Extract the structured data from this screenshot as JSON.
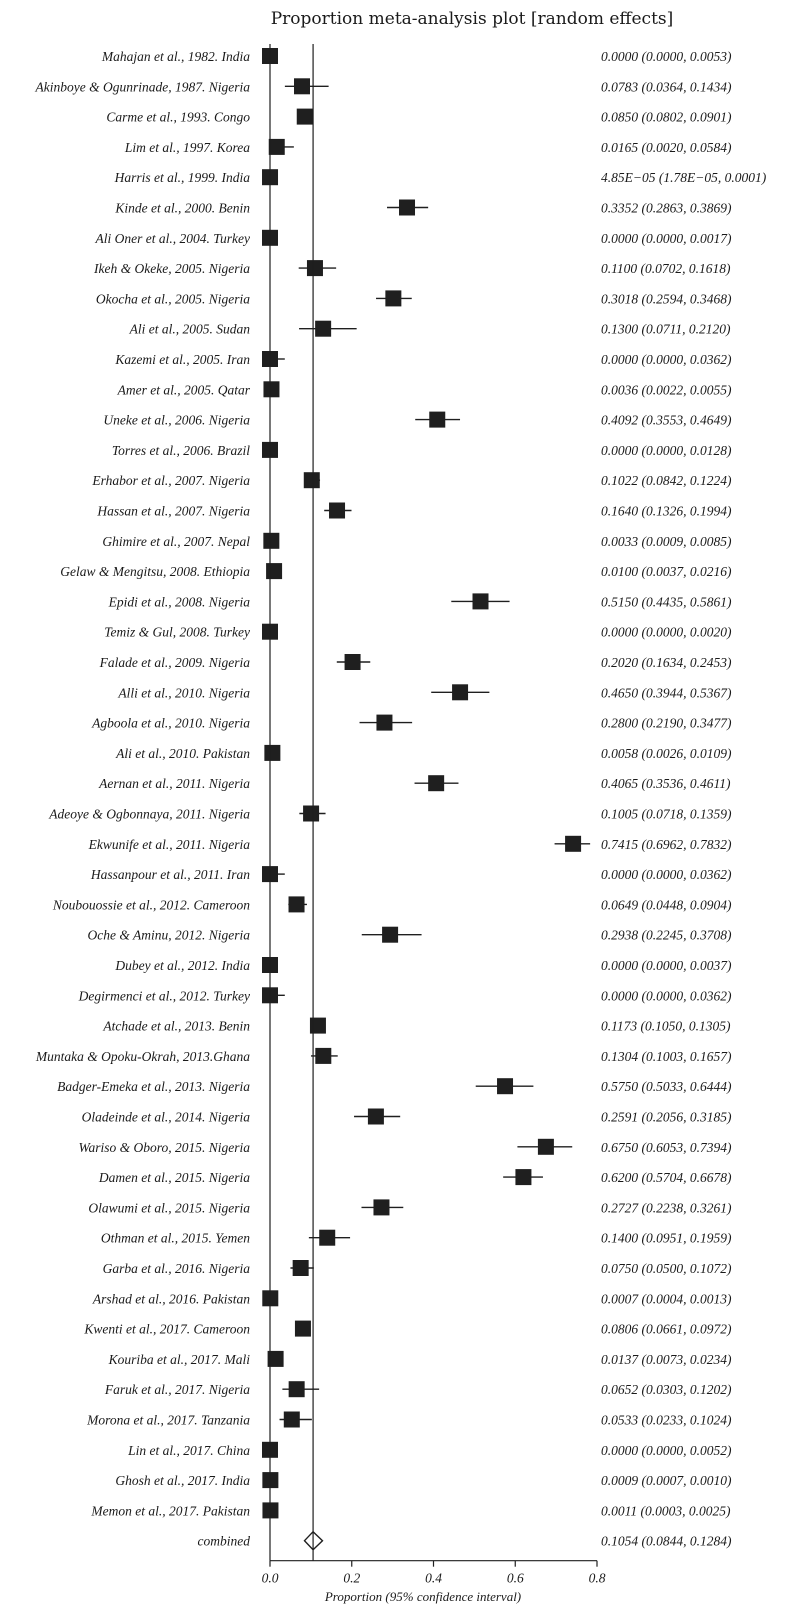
{
  "chart_data": {
    "type": "forest",
    "title": "Proportion meta-analysis plot [random effects]",
    "xlabel": "Proportion (95% confidence interval)",
    "xlim": [
      0,
      0.8
    ],
    "xticks": [
      "0.0",
      "0.2",
      "0.4",
      "0.6",
      "0.8"
    ],
    "reference_line": 0.1054,
    "studies": [
      {
        "label": "Mahajan et al., 1982. India",
        "p": 0.0,
        "lo": 0.0,
        "hi": 0.0053,
        "ci": "0.0000 (0.0000, 0.0053)"
      },
      {
        "label": "Akinboye & Ogunrinade, 1987. Nigeria",
        "p": 0.0783,
        "lo": 0.0364,
        "hi": 0.1434,
        "ci": "0.0783 (0.0364, 0.1434)"
      },
      {
        "label": "Carme et al., 1993. Congo",
        "p": 0.085,
        "lo": 0.0802,
        "hi": 0.0901,
        "ci": "0.0850 (0.0802, 0.0901)"
      },
      {
        "label": "Lim et al., 1997. Korea",
        "p": 0.0165,
        "lo": 0.002,
        "hi": 0.0584,
        "ci": "0.0165 (0.0020, 0.0584)"
      },
      {
        "label": "Harris et al., 1999. India",
        "p": 4.85e-05,
        "lo": 1.78e-05,
        "hi": 0.0001,
        "ci": "4.85E−05 (1.78E−05, 0.0001)"
      },
      {
        "label": "Kinde et al., 2000. Benin",
        "p": 0.3352,
        "lo": 0.2863,
        "hi": 0.3869,
        "ci": "0.3352 (0.2863, 0.3869)"
      },
      {
        "label": "Ali Oner et al., 2004. Turkey",
        "p": 0.0,
        "lo": 0.0,
        "hi": 0.0017,
        "ci": "0.0000 (0.0000, 0.0017)"
      },
      {
        "label": "Ikeh & Okeke, 2005. Nigeria",
        "p": 0.11,
        "lo": 0.0702,
        "hi": 0.1618,
        "ci": "0.1100 (0.0702, 0.1618)"
      },
      {
        "label": "Okocha et al., 2005. Nigeria",
        "p": 0.3018,
        "lo": 0.2594,
        "hi": 0.3468,
        "ci": "0.3018 (0.2594, 0.3468)"
      },
      {
        "label": "Ali et al., 2005. Sudan",
        "p": 0.13,
        "lo": 0.0711,
        "hi": 0.212,
        "ci": "0.1300 (0.0711, 0.2120)"
      },
      {
        "label": "Kazemi et al., 2005. Iran",
        "p": 0.0,
        "lo": 0.0,
        "hi": 0.0362,
        "ci": "0.0000 (0.0000, 0.0362)"
      },
      {
        "label": "Amer et al., 2005. Qatar",
        "p": 0.0036,
        "lo": 0.0022,
        "hi": 0.0055,
        "ci": "0.0036 (0.0022, 0.0055)"
      },
      {
        "label": "Uneke et al., 2006. Nigeria",
        "p": 0.4092,
        "lo": 0.3553,
        "hi": 0.4649,
        "ci": "0.4092 (0.3553, 0.4649)"
      },
      {
        "label": "Torres et al., 2006. Brazil",
        "p": 0.0,
        "lo": 0.0,
        "hi": 0.0128,
        "ci": "0.0000 (0.0000, 0.0128)"
      },
      {
        "label": "Erhabor et al., 2007. Nigeria",
        "p": 0.1022,
        "lo": 0.0842,
        "hi": 0.1224,
        "ci": "0.1022 (0.0842, 0.1224)"
      },
      {
        "label": "Hassan et al., 2007. Nigeria",
        "p": 0.164,
        "lo": 0.1326,
        "hi": 0.1994,
        "ci": "0.1640 (0.1326, 0.1994)"
      },
      {
        "label": "Ghimire et al., 2007. Nepal",
        "p": 0.0033,
        "lo": 0.0009,
        "hi": 0.0085,
        "ci": "0.0033 (0.0009, 0.0085)"
      },
      {
        "label": "Gelaw & Mengitsu, 2008. Ethiopia",
        "p": 0.01,
        "lo": 0.0037,
        "hi": 0.0216,
        "ci": "0.0100 (0.0037, 0.0216)"
      },
      {
        "label": "Epidi et al., 2008. Nigeria",
        "p": 0.515,
        "lo": 0.4435,
        "hi": 0.5861,
        "ci": "0.5150 (0.4435, 0.5861)"
      },
      {
        "label": "Temiz & Gul, 2008. Turkey",
        "p": 0.0,
        "lo": 0.0,
        "hi": 0.002,
        "ci": "0.0000 (0.0000, 0.0020)"
      },
      {
        "label": "Falade et al., 2009. Nigeria",
        "p": 0.202,
        "lo": 0.1634,
        "hi": 0.2453,
        "ci": "0.2020 (0.1634, 0.2453)"
      },
      {
        "label": "Alli et al., 2010. Nigeria",
        "p": 0.465,
        "lo": 0.3944,
        "hi": 0.5367,
        "ci": "0.4650 (0.3944, 0.5367)"
      },
      {
        "label": "Agboola et al., 2010. Nigeria",
        "p": 0.28,
        "lo": 0.219,
        "hi": 0.3477,
        "ci": "0.2800 (0.2190, 0.3477)"
      },
      {
        "label": "Ali et al., 2010. Pakistan",
        "p": 0.0058,
        "lo": 0.0026,
        "hi": 0.0109,
        "ci": "0.0058 (0.0026, 0.0109)"
      },
      {
        "label": "Aernan et al., 2011. Nigeria",
        "p": 0.4065,
        "lo": 0.3536,
        "hi": 0.4611,
        "ci": "0.4065 (0.3536, 0.4611)"
      },
      {
        "label": "Adeoye & Ogbonnaya, 2011. Nigeria",
        "p": 0.1005,
        "lo": 0.0718,
        "hi": 0.1359,
        "ci": "0.1005 (0.0718, 0.1359)"
      },
      {
        "label": "Ekwunife et al., 2011. Nigeria",
        "p": 0.7415,
        "lo": 0.6962,
        "hi": 0.7832,
        "ci": "0.7415 (0.6962, 0.7832)"
      },
      {
        "label": "Hassanpour et al., 2011. Iran",
        "p": 0.0,
        "lo": 0.0,
        "hi": 0.0362,
        "ci": "0.0000 (0.0000, 0.0362)"
      },
      {
        "label": "Noubouossie et al., 2012. Cameroon",
        "p": 0.0649,
        "lo": 0.0448,
        "hi": 0.0904,
        "ci": "0.0649 (0.0448, 0.0904)"
      },
      {
        "label": "Oche & Aminu, 2012. Nigeria",
        "p": 0.2938,
        "lo": 0.2245,
        "hi": 0.3708,
        "ci": "0.2938 (0.2245, 0.3708)"
      },
      {
        "label": "Dubey et al., 2012. India",
        "p": 0.0,
        "lo": 0.0,
        "hi": 0.0037,
        "ci": "0.0000 (0.0000, 0.0037)"
      },
      {
        "label": "Degirmenci et al., 2012. Turkey",
        "p": 0.0,
        "lo": 0.0,
        "hi": 0.0362,
        "ci": "0.0000 (0.0000, 0.0362)"
      },
      {
        "label": "Atchade et al., 2013. Benin",
        "p": 0.1173,
        "lo": 0.105,
        "hi": 0.1305,
        "ci": "0.1173 (0.1050, 0.1305)"
      },
      {
        "label": "Muntaka & Opoku-Okrah, 2013.Ghana",
        "p": 0.1304,
        "lo": 0.1003,
        "hi": 0.1657,
        "ci": "0.1304 (0.1003, 0.1657)"
      },
      {
        "label": "Badger-Emeka et al., 2013. Nigeria",
        "p": 0.575,
        "lo": 0.5033,
        "hi": 0.6444,
        "ci": "0.5750 (0.5033, 0.6444)"
      },
      {
        "label": "Oladeinde et al., 2014. Nigeria",
        "p": 0.2591,
        "lo": 0.2056,
        "hi": 0.3185,
        "ci": "0.2591 (0.2056, 0.3185)"
      },
      {
        "label": "Wariso & Oboro, 2015. Nigeria",
        "p": 0.675,
        "lo": 0.6053,
        "hi": 0.7394,
        "ci": "0.6750 (0.6053, 0.7394)"
      },
      {
        "label": "Damen et al., 2015. Nigeria",
        "p": 0.62,
        "lo": 0.5704,
        "hi": 0.6678,
        "ci": "0.6200 (0.5704, 0.6678)"
      },
      {
        "label": "Olawumi et al., 2015. Nigeria",
        "p": 0.2727,
        "lo": 0.2238,
        "hi": 0.3261,
        "ci": "0.2727 (0.2238, 0.3261)"
      },
      {
        "label": "Othman et al., 2015. Yemen",
        "p": 0.14,
        "lo": 0.0951,
        "hi": 0.1959,
        "ci": "0.1400 (0.0951, 0.1959)"
      },
      {
        "label": "Garba et al., 2016. Nigeria",
        "p": 0.075,
        "lo": 0.05,
        "hi": 0.1072,
        "ci": "0.0750 (0.0500, 0.1072)"
      },
      {
        "label": "Arshad et al., 2016. Pakistan",
        "p": 0.0007,
        "lo": 0.0004,
        "hi": 0.0013,
        "ci": "0.0007 (0.0004, 0.0013)"
      },
      {
        "label": "Kwenti et al., 2017. Cameroon",
        "p": 0.0806,
        "lo": 0.0661,
        "hi": 0.0972,
        "ci": "0.0806 (0.0661, 0.0972)"
      },
      {
        "label": "Kouriba et al., 2017. Mali",
        "p": 0.0137,
        "lo": 0.0073,
        "hi": 0.0234,
        "ci": "0.0137 (0.0073, 0.0234)"
      },
      {
        "label": "Faruk et al., 2017. Nigeria",
        "p": 0.0652,
        "lo": 0.0303,
        "hi": 0.1202,
        "ci": "0.0652 (0.0303, 0.1202)"
      },
      {
        "label": "Morona et al., 2017. Tanzania",
        "p": 0.0533,
        "lo": 0.0233,
        "hi": 0.1024,
        "ci": "0.0533 (0.0233, 0.1024)"
      },
      {
        "label": "Lin et al., 2017. China",
        "p": 0.0,
        "lo": 0.0,
        "hi": 0.0052,
        "ci": "0.0000 (0.0000, 0.0052)"
      },
      {
        "label": "Ghosh et al., 2017. India",
        "p": 0.0009,
        "lo": 0.0007,
        "hi": 0.001,
        "ci": "0.0009 (0.0007, 0.0010)"
      },
      {
        "label": "Memon et al., 2017. Pakistan",
        "p": 0.0011,
        "lo": 0.0003,
        "hi": 0.0025,
        "ci": "0.0011 (0.0003, 0.0025)"
      }
    ],
    "combined": {
      "label": "combined",
      "p": 0.1054,
      "lo": 0.0844,
      "hi": 0.1284,
      "ci": "0.1054 (0.0844, 0.1284)"
    },
    "colors": {
      "marker": "#1f1f1f",
      "line": "#1f1f1f",
      "text": "#1a1a1a"
    }
  }
}
